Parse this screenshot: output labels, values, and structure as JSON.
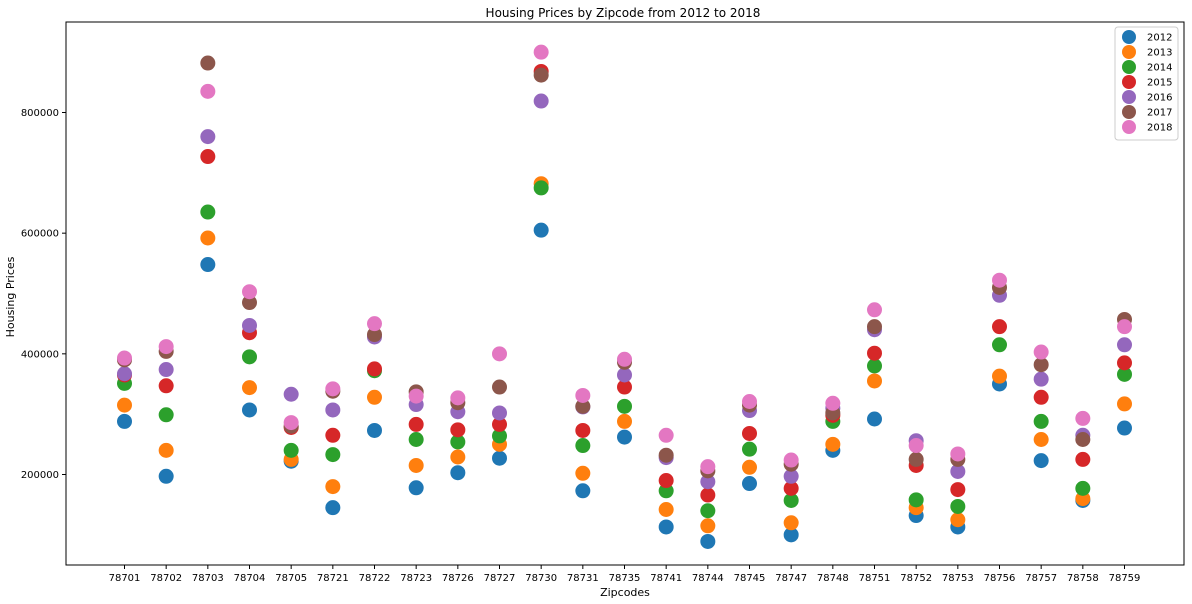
{
  "chart_data": {
    "type": "scatter",
    "title": "Housing Prices by Zipcode from 2012 to 2018",
    "xlabel": "Zipcodes",
    "ylabel": "Housing Prices",
    "categories": [
      "78701",
      "78702",
      "78703",
      "78704",
      "78705",
      "78721",
      "78722",
      "78723",
      "78726",
      "78727",
      "78730",
      "78731",
      "78735",
      "78741",
      "78744",
      "78745",
      "78747",
      "78748",
      "78751",
      "78752",
      "78753",
      "78756",
      "78757",
      "78758",
      "78759"
    ],
    "ylim": [
      50000,
      950000
    ],
    "yticks": [
      200000,
      400000,
      600000,
      800000
    ],
    "ytick_labels": [
      "200000",
      "400000",
      "600000",
      "800000"
    ],
    "legend_position": "top-right",
    "grid": false,
    "series": [
      {
        "name": "2012",
        "color": "#1f77b4",
        "values": [
          288000,
          197000,
          548000,
          307000,
          222000,
          145000,
          273000,
          178000,
          203000,
          227000,
          605000,
          173000,
          262000,
          113000,
          89000,
          185000,
          100000,
          240000,
          292000,
          132000,
          113000,
          350000,
          223000,
          157000,
          277000
        ]
      },
      {
        "name": "2013",
        "color": "#ff7f0e",
        "values": [
          315000,
          240000,
          592000,
          344000,
          225000,
          180000,
          328000,
          215000,
          229000,
          250000,
          682000,
          202000,
          288000,
          142000,
          115000,
          212000,
          120000,
          250000,
          355000,
          145000,
          125000,
          363000,
          258000,
          160000,
          317000
        ]
      },
      {
        "name": "2014",
        "color": "#2ca02c",
        "values": [
          351000,
          299000,
          635000,
          395000,
          240000,
          233000,
          372000,
          258000,
          254000,
          264000,
          675000,
          248000,
          313000,
          173000,
          140000,
          242000,
          157000,
          288000,
          380000,
          158000,
          147000,
          415000,
          288000,
          177000,
          366000
        ]
      },
      {
        "name": "2015",
        "color": "#d62728",
        "values": [
          365000,
          347000,
          727000,
          435000,
          278000,
          265000,
          375000,
          283000,
          274000,
          283000,
          868000,
          273000,
          345000,
          190000,
          166000,
          268000,
          177000,
          298000,
          401000,
          215000,
          175000,
          445000,
          328000,
          225000,
          385000
        ]
      },
      {
        "name": "2016",
        "color": "#9467bd",
        "values": [
          367000,
          374000,
          760000,
          447000,
          333000,
          307000,
          428000,
          316000,
          304000,
          302000,
          819000,
          312000,
          365000,
          228000,
          188000,
          306000,
          197000,
          310000,
          440000,
          256000,
          205000,
          497000,
          358000,
          265000,
          415000
        ]
      },
      {
        "name": "2017",
        "color": "#8c564b",
        "values": [
          390000,
          404000,
          882000,
          485000,
          280000,
          338000,
          432000,
          337000,
          319000,
          345000,
          862000,
          313000,
          386000,
          232000,
          206000,
          315000,
          217000,
          302000,
          445000,
          225000,
          225000,
          510000,
          382000,
          258000,
          457000
        ]
      },
      {
        "name": "2018",
        "color": "#e377c2",
        "values": [
          393000,
          412000,
          835000,
          503000,
          286000,
          342000,
          450000,
          330000,
          327000,
          400000,
          900000,
          331000,
          391000,
          265000,
          213000,
          321000,
          224000,
          318000,
          473000,
          248000,
          234000,
          522000,
          403000,
          293000,
          445000
        ]
      }
    ]
  }
}
